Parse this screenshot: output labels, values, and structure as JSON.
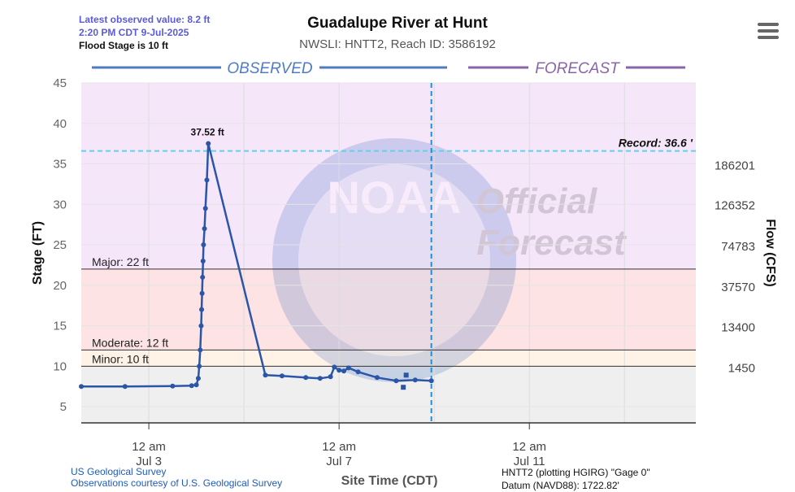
{
  "header": {
    "latest_value": "Latest observed value: 8.2 ft",
    "latest_time": "2:20 PM CDT 9-Jul-2025",
    "flood_stage": "Flood Stage is 10 ft",
    "title": "Guadalupe River at Hunt",
    "subtitle": "NWSLI: HNTT2, Reach ID: 3586192"
  },
  "menu": {
    "icon": "hamburger-menu-icon"
  },
  "sections": {
    "observed": "OBSERVED",
    "forecast": "FORECAST"
  },
  "watermark": {
    "agency": "NOAA",
    "line1": "Official",
    "line2": "Forecast"
  },
  "footer": {
    "source1": "US Geological Survey",
    "source2": "Observations courtesy of U.S. Geological Survey",
    "xaxis_title": "Site Time (CDT)",
    "datum1": "HNTT2 (plotting HGIRG) \"Gage 0\"",
    "datum2": "Datum (NAVD88): 1722.82'"
  },
  "colors": {
    "observed_line": "#2b55a6",
    "observed_label": "#4f7bc4",
    "forecast_label": "#8a64a8",
    "record_line": "#5fd3e8",
    "forecast_divider": "#1f8fd6",
    "band_above_major": "#f6e6fa",
    "band_major": "#fde3e3",
    "band_moderate": "#fff2e6",
    "band_below_minor": "#efefef"
  },
  "chart_data": {
    "type": "line",
    "ylabel": "Stage (FT)",
    "y2label": "Flow (CFS)",
    "ylim": [
      3,
      45
    ],
    "yticks": [
      5,
      10,
      15,
      20,
      25,
      30,
      35,
      40,
      45
    ],
    "xticks": [
      {
        "day": 3,
        "line1": "12 am",
        "line2": "Jul 3"
      },
      {
        "day": 7,
        "line1": "12 am",
        "line2": "Jul 7"
      },
      {
        "day": 11,
        "line1": "12 am",
        "line2": "Jul 11"
      }
    ],
    "xlim_days": [
      1.58,
      14.5
    ],
    "grid_days": [
      5,
      9,
      13
    ],
    "forecast_start_day": 8.94,
    "flow_ticks": [
      {
        "stage": 34.8,
        "label": "186201"
      },
      {
        "stage": 29.9,
        "label": "126352"
      },
      {
        "stage": 24.8,
        "label": "74783"
      },
      {
        "stage": 19.8,
        "label": "37570"
      },
      {
        "stage": 14.8,
        "label": "13400"
      },
      {
        "stage": 9.8,
        "label": "1450"
      }
    ],
    "thresholds": [
      {
        "name": "Major",
        "value": 22,
        "label": "Major: 22 ft"
      },
      {
        "name": "Moderate",
        "value": 12,
        "label": "Moderate: 12 ft"
      },
      {
        "name": "Minor",
        "value": 10,
        "label": "Minor: 10 ft"
      }
    ],
    "record": {
      "value": 36.6,
      "label": "Record: 36.6 '"
    },
    "peak": {
      "day": 4.25,
      "value": 37.52,
      "label": "37.52 ft"
    },
    "series": [
      {
        "points": [
          [
            1.58,
            7.5
          ],
          [
            2.5,
            7.5
          ],
          [
            3.5,
            7.55
          ],
          [
            3.9,
            7.6
          ],
          [
            4.0,
            7.7
          ],
          [
            4.04,
            8.5
          ],
          [
            4.06,
            10.0
          ],
          [
            4.08,
            12.0
          ],
          [
            4.1,
            15.0
          ],
          [
            4.11,
            17.0
          ],
          [
            4.12,
            19.0
          ],
          [
            4.13,
            21.0
          ],
          [
            4.14,
            23.0
          ],
          [
            4.15,
            25.0
          ],
          [
            4.17,
            27.0
          ],
          [
            4.19,
            29.5
          ],
          [
            4.22,
            33.0
          ],
          [
            4.25,
            37.52
          ],
          [
            5.45,
            8.9
          ],
          [
            5.8,
            8.8
          ],
          [
            6.3,
            8.6
          ],
          [
            6.6,
            8.5
          ],
          [
            6.82,
            8.7
          ],
          [
            6.9,
            9.9
          ],
          [
            7.0,
            9.5
          ],
          [
            7.1,
            9.4
          ],
          [
            7.2,
            9.8
          ],
          [
            7.4,
            9.3
          ],
          [
            7.8,
            8.6
          ],
          [
            8.2,
            8.2
          ],
          [
            8.6,
            8.3
          ],
          [
            8.94,
            8.2
          ]
        ]
      }
    ],
    "markers": [
      {
        "day": 8.35,
        "value": 7.4
      },
      {
        "day": 8.41,
        "value": 8.9
      }
    ]
  }
}
